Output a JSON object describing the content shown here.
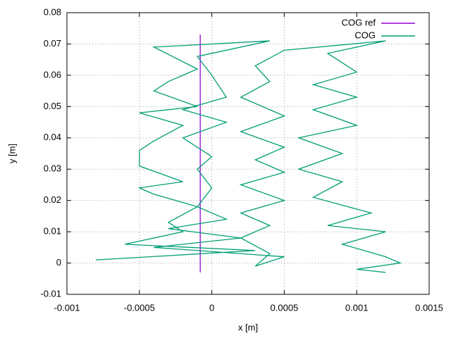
{
  "chart_data": {
    "type": "line",
    "x_label": "x [m]",
    "y_label": "y [m]",
    "xlim": [
      -0.001,
      0.0015
    ],
    "ylim": [
      -0.01,
      0.08
    ],
    "xticks": [
      -0.001,
      -0.0005,
      0,
      0.0005,
      0.001,
      0.0015
    ],
    "yticks": [
      -0.01,
      0,
      0.01,
      0.02,
      0.03,
      0.04,
      0.05,
      0.06,
      0.07,
      0.08
    ],
    "grid": true,
    "legend": "top-right",
    "series": [
      {
        "name": "COG ref",
        "color": "#9400d3",
        "x": [
          -8e-05,
          -8e-05
        ],
        "values": [
          -0.003,
          0.073
        ]
      },
      {
        "name": "COG",
        "color": "#009e73",
        "x": [
          -0.0008,
          0.0003,
          -0.0006,
          -0.0002,
          -0.0003,
          -0.0001,
          -0.0004,
          -0.0005,
          -0.0002,
          -0.0005,
          -0.0005,
          -0.0004,
          -0.0002,
          -0.0005,
          -0.0001,
          -0.0004,
          -0.0003,
          -0.0001,
          -0.0004,
          0.0004,
          -0.0001,
          0,
          0.0001,
          -0.0002,
          0.0001,
          -0.0002,
          0,
          -0.0001,
          0,
          -0.0001,
          0.0001,
          -0.0003,
          0.0002,
          -0.0004,
          0.0005,
          0.0003,
          0.0004,
          0.0002,
          0.0004,
          0.0002,
          0.0005,
          0.0002,
          0.0005,
          0.0003,
          0.0005,
          0.0002,
          0.0005,
          0.0002,
          0.0004,
          0.0003,
          0.0005,
          0.0012,
          0.0008,
          0.001,
          0.0007,
          0.001,
          0.0007,
          0.001,
          0.0006,
          0.0009,
          0.0006,
          0.0009,
          0.0007,
          0.0011,
          0.0008,
          0.0012,
          0.0009,
          0.0012,
          0.0013,
          0.001,
          0.0012
        ],
        "values": [
          0.001,
          0.004,
          0.006,
          0.01,
          0.013,
          0.018,
          0.022,
          0.024,
          0.026,
          0.031,
          0.036,
          0.039,
          0.044,
          0.048,
          0.05,
          0.055,
          0.058,
          0.062,
          0.069,
          0.071,
          0.066,
          0.06,
          0.053,
          0.049,
          0.045,
          0.04,
          0.034,
          0.03,
          0.024,
          0.018,
          0.014,
          0.011,
          0.008,
          0.005,
          0.002,
          -0.001,
          0.003,
          0.008,
          0.012,
          0.016,
          0.02,
          0.025,
          0.029,
          0.033,
          0.037,
          0.042,
          0.047,
          0.053,
          0.058,
          0.063,
          0.068,
          0.071,
          0.067,
          0.061,
          0.057,
          0.053,
          0.049,
          0.044,
          0.04,
          0.035,
          0.03,
          0.026,
          0.021,
          0.016,
          0.012,
          0.01,
          0.006,
          0.002,
          0,
          -0.002,
          -0.003
        ]
      }
    ]
  }
}
